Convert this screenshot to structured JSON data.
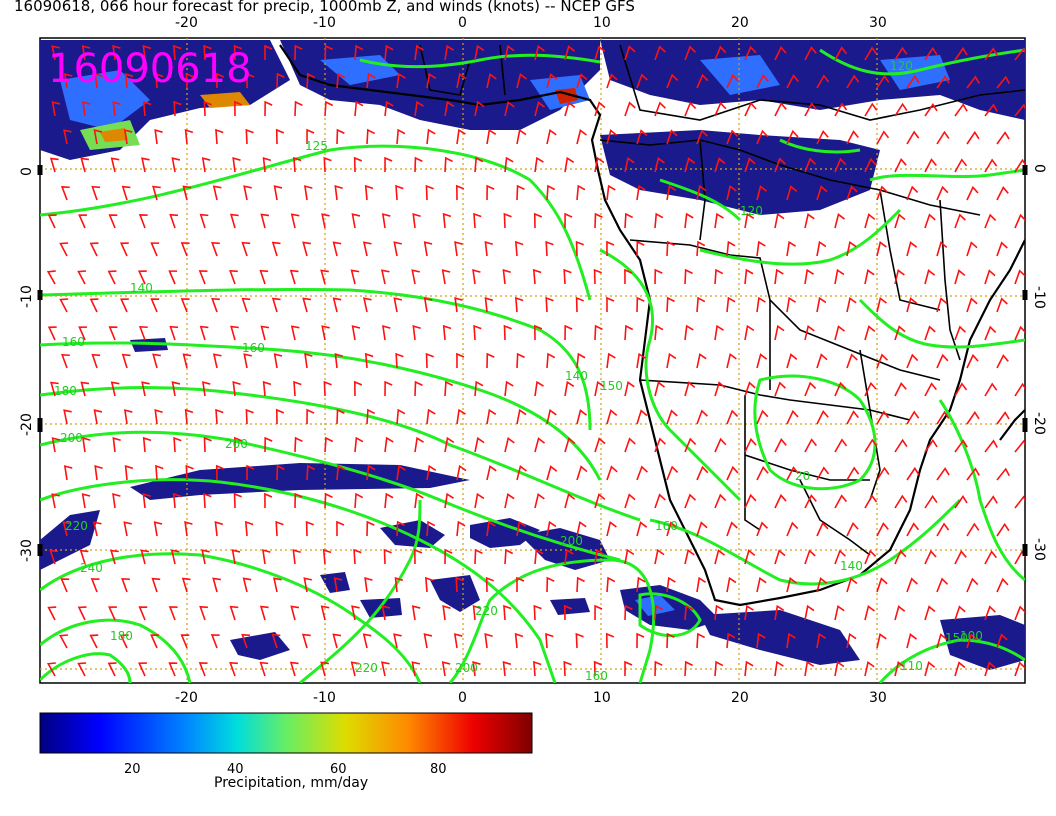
{
  "title": "16090618, 066 hour forecast for precip, 1000mb Z, and winds (knots) -- NCEP GFS",
  "stamp": "16090618",
  "lon_ticks": [
    "-20",
    "-10",
    "0",
    "10",
    "20",
    "30"
  ],
  "lat_ticks": [
    "0",
    "-10",
    "-20",
    "-30"
  ],
  "contour_labels": [
    "125",
    "140",
    "160",
    "160",
    "180",
    "200",
    "200",
    "220",
    "240",
    "220",
    "200",
    "180",
    "220",
    "200",
    "160",
    "150",
    "140",
    "120",
    "120",
    "20",
    "140",
    "150",
    "100",
    "110",
    "160"
  ],
  "colorbar": {
    "ticks": [
      "20",
      "40",
      "60",
      "80"
    ],
    "label": "Precipitation, mm/day",
    "range": [
      0,
      100
    ]
  },
  "colors": {
    "contour": "#22ee22",
    "wind_barb": "#ff1111",
    "precip_low": "#1a1a8c",
    "stamp": "#ff00ff",
    "grid": "#d4a017"
  }
}
